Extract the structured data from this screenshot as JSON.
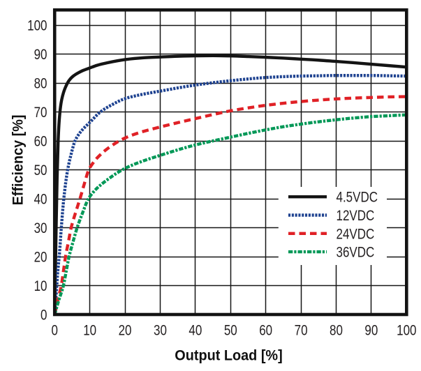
{
  "chart_data": {
    "type": "line",
    "title": "",
    "xlabel": "Output Load [%]",
    "ylabel": "Efficiency [%]",
    "xlim": [
      0,
      100
    ],
    "ylim": [
      0,
      105.25
    ],
    "x_ticks": [
      0,
      10,
      20,
      30,
      40,
      50,
      60,
      70,
      80,
      90,
      100
    ],
    "y_ticks": [
      0,
      10,
      20,
      30,
      40,
      50,
      60,
      70,
      80,
      90,
      100
    ],
    "grid": true,
    "legend_position": "lower right",
    "colors": {
      "background": "#ffffff",
      "frame": "#131313",
      "grid": "#161616",
      "tick_text": "#231f20",
      "title_text": "#111111"
    },
    "series": [
      {
        "name": "4.5VDC",
        "color": "#141414",
        "line_style": "solid",
        "points": [
          [
            0,
            0
          ],
          [
            0.4,
            28
          ],
          [
            0.7,
            47
          ],
          [
            1,
            60
          ],
          [
            1.3,
            67
          ],
          [
            1.7,
            72
          ],
          [
            2,
            74.2
          ],
          [
            2.5,
            76.6
          ],
          [
            3,
            78.3
          ],
          [
            4,
            80.7
          ],
          [
            5,
            82.1
          ],
          [
            6,
            83
          ],
          [
            7,
            83.7
          ],
          [
            8,
            84.3
          ],
          [
            10,
            85.2
          ],
          [
            12,
            86.1
          ],
          [
            15,
            87
          ],
          [
            20,
            88.1
          ],
          [
            25,
            88.7
          ],
          [
            30,
            89
          ],
          [
            35,
            89.25
          ],
          [
            40,
            89.4
          ],
          [
            45,
            89.45
          ],
          [
            50,
            89.35
          ],
          [
            55,
            89.15
          ],
          [
            60,
            88.9
          ],
          [
            65,
            88.6
          ],
          [
            70,
            88.25
          ],
          [
            75,
            87.9
          ],
          [
            80,
            87.45
          ],
          [
            85,
            87
          ],
          [
            90,
            86.5
          ],
          [
            95,
            86
          ],
          [
            100,
            85.5
          ]
        ]
      },
      {
        "name": "12VDC",
        "color": "#1e4290",
        "line_style": "dotted",
        "points": [
          [
            0,
            0
          ],
          [
            0.5,
            8
          ],
          [
            0.9,
            15
          ],
          [
            1.3,
            20
          ],
          [
            1.9,
            30
          ],
          [
            2.6,
            40
          ],
          [
            3.7,
            50
          ],
          [
            4.6,
            55
          ],
          [
            5.8,
            60
          ],
          [
            7,
            62.5
          ],
          [
            8,
            64
          ],
          [
            10,
            66.4
          ],
          [
            13,
            70
          ],
          [
            16,
            72.3
          ],
          [
            20,
            74.6
          ],
          [
            25,
            76.1
          ],
          [
            30,
            77.2
          ],
          [
            35,
            78.3
          ],
          [
            40,
            79.3
          ],
          [
            45,
            80.1
          ],
          [
            50,
            80.8
          ],
          [
            55,
            81.4
          ],
          [
            60,
            81.9
          ],
          [
            65,
            82.2
          ],
          [
            70,
            82.4
          ],
          [
            75,
            82.5
          ],
          [
            80,
            82.6
          ],
          [
            85,
            82.6
          ],
          [
            90,
            82.6
          ],
          [
            95,
            82.5
          ],
          [
            100,
            82.4
          ]
        ]
      },
      {
        "name": "24VDC",
        "color": "#e02126",
        "line_style": "dashed",
        "points": [
          [
            0,
            0
          ],
          [
            1,
            5.5
          ],
          [
            1.9,
            10
          ],
          [
            2.5,
            15
          ],
          [
            3.1,
            20
          ],
          [
            3.9,
            25
          ],
          [
            4.7,
            30
          ],
          [
            5.9,
            35
          ],
          [
            7.2,
            40
          ],
          [
            8.4,
            45
          ],
          [
            9.7,
            50
          ],
          [
            11,
            52.5
          ],
          [
            12,
            54
          ],
          [
            15,
            57.3
          ],
          [
            20,
            61
          ],
          [
            25,
            63.2
          ],
          [
            30,
            64.8
          ],
          [
            35,
            66.3
          ],
          [
            40,
            67.7
          ],
          [
            45,
            69.1
          ],
          [
            50,
            70.4
          ],
          [
            55,
            71.4
          ],
          [
            60,
            72.3
          ],
          [
            65,
            73
          ],
          [
            70,
            73.6
          ],
          [
            75,
            74.1
          ],
          [
            80,
            74.5
          ],
          [
            85,
            74.8
          ],
          [
            90,
            75
          ],
          [
            95,
            75.2
          ],
          [
            100,
            75.3
          ]
        ]
      },
      {
        "name": "36VDC",
        "color": "#009857",
        "line_style": "dash-dot",
        "points": [
          [
            0,
            0
          ],
          [
            1.2,
            5
          ],
          [
            2.5,
            10
          ],
          [
            3.3,
            15
          ],
          [
            4.1,
            20
          ],
          [
            5.2,
            25
          ],
          [
            6.4,
            30
          ],
          [
            7.9,
            35
          ],
          [
            9.6,
            40
          ],
          [
            11,
            42.3
          ],
          [
            12,
            43.6
          ],
          [
            15,
            46.6
          ],
          [
            20,
            50.5
          ],
          [
            25,
            53
          ],
          [
            30,
            55
          ],
          [
            35,
            56.9
          ],
          [
            40,
            58.6
          ],
          [
            45,
            60
          ],
          [
            50,
            61.3
          ],
          [
            55,
            62.6
          ],
          [
            60,
            63.8
          ],
          [
            65,
            64.9
          ],
          [
            70,
            65.8
          ],
          [
            75,
            66.6
          ],
          [
            80,
            67.3
          ],
          [
            85,
            67.9
          ],
          [
            90,
            68.4
          ],
          [
            95,
            68.7
          ],
          [
            100,
            69
          ]
        ]
      }
    ]
  }
}
